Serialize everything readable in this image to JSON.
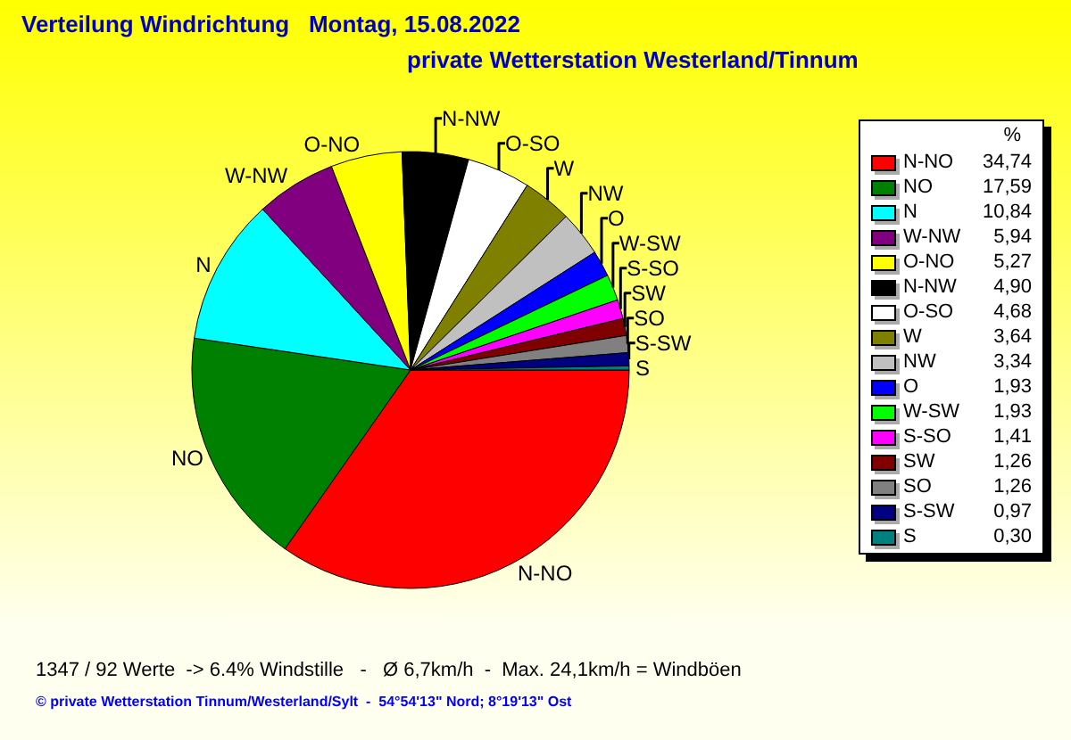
{
  "chart_data": {
    "type": "pie",
    "title": "Verteilung Windrichtung   Montag, 15.08.2022",
    "subtitle": "private Wetterstation Westerland/Tinnum",
    "legend_title": "%",
    "legend": "right",
    "categories": [
      "N-NO",
      "NO",
      "N",
      "W-NW",
      "O-NO",
      "N-NW",
      "O-SO",
      "W",
      "NW",
      "O",
      "W-SW",
      "S-SO",
      "SW",
      "SO",
      "S-SW",
      "S"
    ],
    "values": [
      34.74,
      17.59,
      10.84,
      5.94,
      5.27,
      4.9,
      4.68,
      3.64,
      3.34,
      1.93,
      1.93,
      1.41,
      1.26,
      1.26,
      0.97,
      0.3
    ],
    "value_labels": [
      "34,74",
      "17,59",
      "10,84",
      "5,94",
      "5,27",
      "4,90",
      "4,68",
      "3,64",
      "3,34",
      "1,93",
      "1,93",
      "1,41",
      "1,26",
      "1,26",
      "0,97",
      "0,30"
    ],
    "colors": [
      "#ff0000",
      "#008000",
      "#00ffff",
      "#800080",
      "#ffff00",
      "#000000",
      "#ffffff",
      "#808000",
      "#c0c0c0",
      "#0000ff",
      "#00ff00",
      "#ff00ff",
      "#800000",
      "#808080",
      "#000080",
      "#008080"
    ],
    "annotations": [
      "1347 / 92 Werte  -> 6.4% Windstille   -   Ø 6,7km/h  -  Max. 24,1km/h = Windböen",
      "© private Wetterstation Tinnum/Westerland/Sylt  -  54°54'13\" Nord; 8°19'13\" Ost"
    ]
  }
}
